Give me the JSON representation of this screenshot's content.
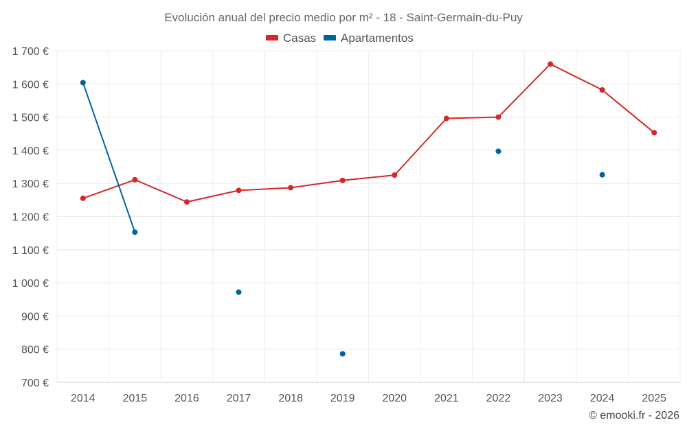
{
  "chart_data": {
    "type": "line",
    "title": "Evolución anual del precio medio por m² - 18 - Saint-Germain-du-Puy",
    "categories": [
      "2014",
      "2015",
      "2016",
      "2017",
      "2018",
      "2019",
      "2020",
      "2021",
      "2022",
      "2023",
      "2024",
      "2025"
    ],
    "ylim": [
      700,
      1700
    ],
    "yticks": [
      700,
      800,
      900,
      1000,
      1100,
      1200,
      1300,
      1400,
      1500,
      1600,
      1700
    ],
    "ytick_labels": [
      "700 €",
      "800 €",
      "900 €",
      "1 000 €",
      "1 100 €",
      "1 200 €",
      "1 300 €",
      "1 400 €",
      "1 500 €",
      "1 600 €",
      "1 700 €"
    ],
    "grid": true,
    "legend_position": "top-center",
    "series": [
      {
        "name": "Casas",
        "color": "#d62728",
        "values": [
          1255,
          1311,
          1244,
          1279,
          1287,
          1309,
          1325,
          1496,
          1500,
          1660,
          1582,
          1453
        ]
      },
      {
        "name": "Apartamentos",
        "color": "#00639e",
        "values": [
          1604,
          1153,
          null,
          972,
          null,
          786,
          null,
          null,
          1397,
          null,
          1326,
          null
        ]
      }
    ]
  },
  "credit": "© emooki.fr - 2026"
}
